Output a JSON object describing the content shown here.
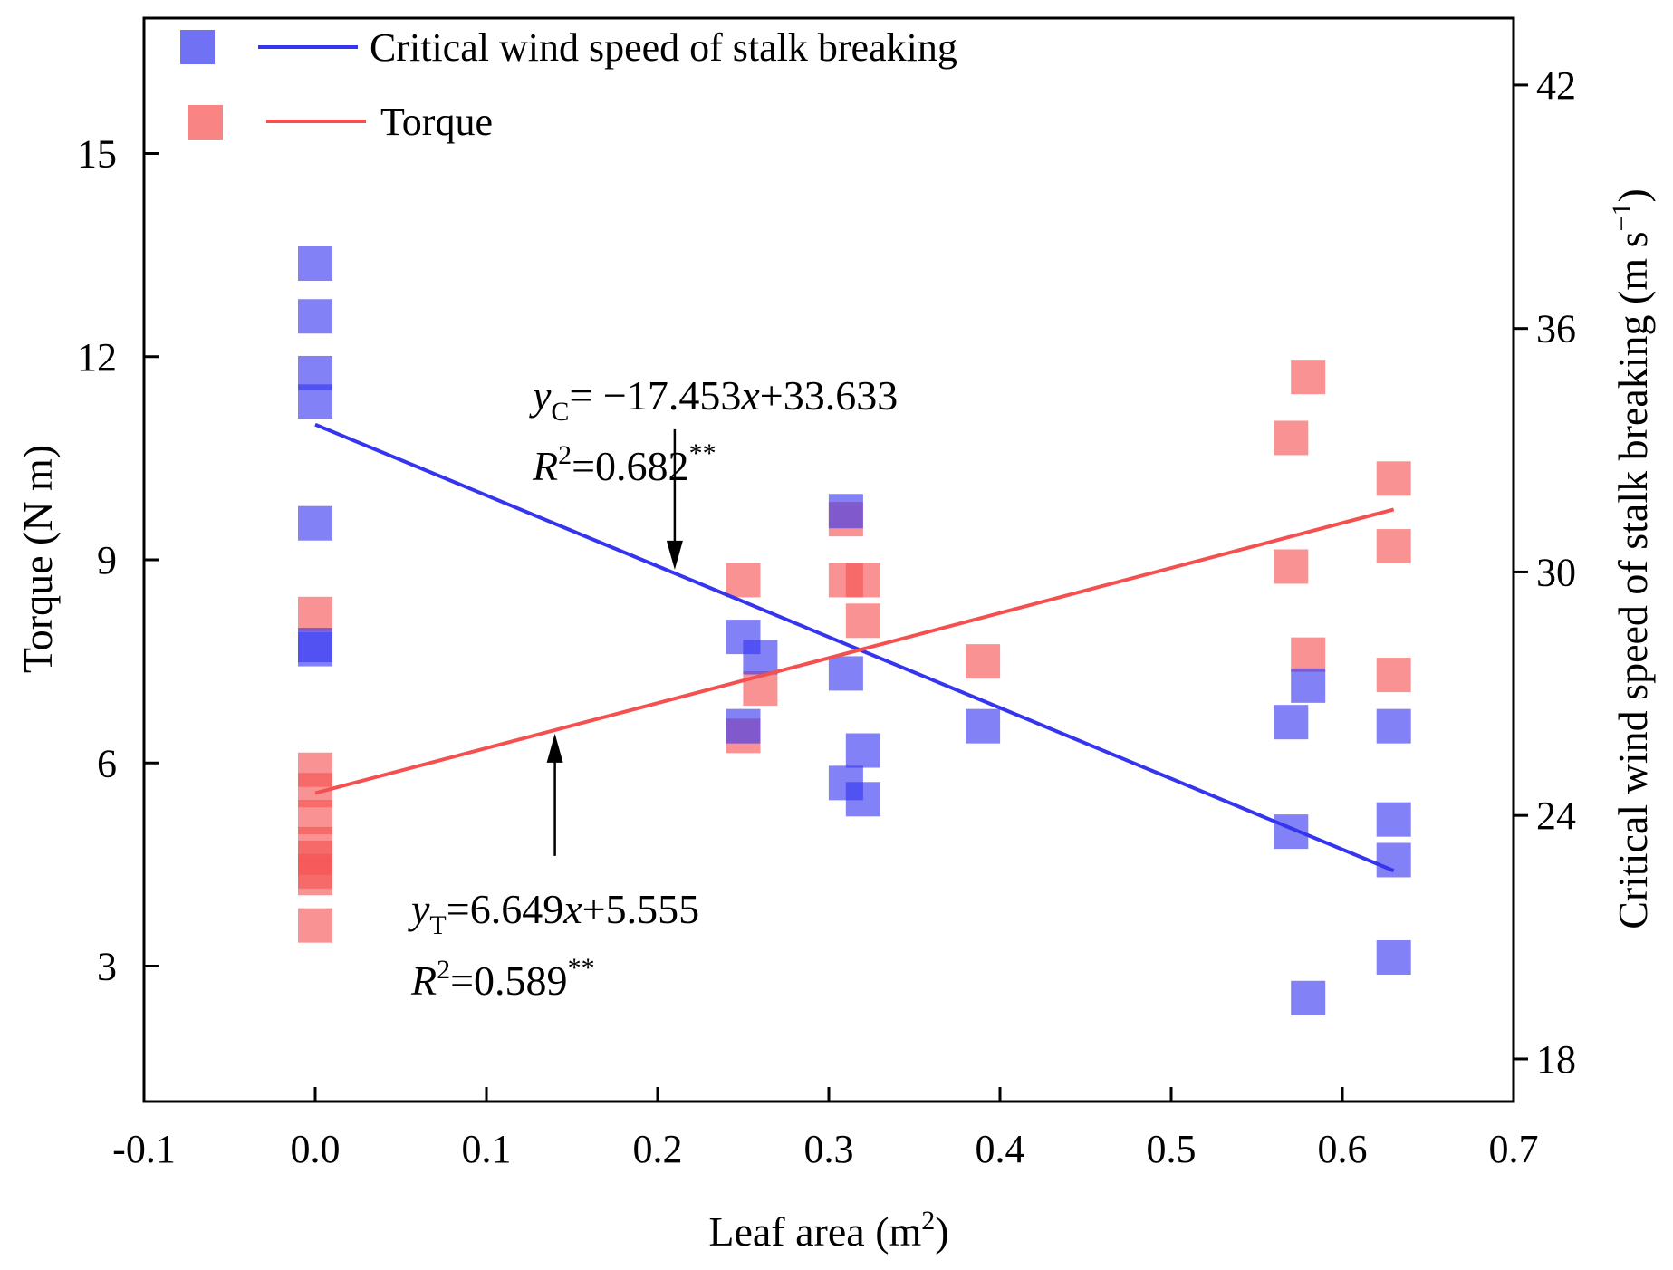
{
  "chart_data": {
    "type": "scatter",
    "xlabel": "Leaf area (m",
    "xlabel_sup": "2",
    "xlabel_end": ")",
    "ylabel": "Torque (N m)",
    "y2label": "Critical wind speed of stalk breaking (m s",
    "y2label_sup": "−1",
    "y2label_end": ")",
    "xlim": [
      -0.1,
      0.7
    ],
    "ylim": [
      1.0,
      17.0
    ],
    "y2lim": [
      16.95,
      43.65
    ],
    "xticks": [
      -0.1,
      0.0,
      0.1,
      0.2,
      0.3,
      0.4,
      0.5,
      0.6,
      0.7
    ],
    "xtick_labels": [
      "-0.1",
      "0.0",
      "0.1",
      "0.2",
      "0.3",
      "0.4",
      "0.5",
      "0.6",
      "0.7"
    ],
    "yticks": [
      3,
      6,
      9,
      12,
      15
    ],
    "ytick_labels": [
      "3",
      "6",
      "9",
      "12",
      "15"
    ],
    "y2ticks": [
      18,
      24,
      30,
      36,
      42
    ],
    "y2tick_labels": [
      "18",
      "24",
      "30",
      "36",
      "42"
    ],
    "legend": {
      "placement": "top-left",
      "entries": [
        {
          "label": "Critical wind speed of stalk breaking",
          "color": "#3535f0"
        },
        {
          "label": "Torque",
          "color": "#f55050"
        }
      ]
    },
    "series": [
      {
        "name": "Critical wind speed of stalk breaking",
        "axis": "right",
        "color": "#3535f0",
        "x": [
          0.0,
          0.0,
          0.0,
          0.0,
          0.0,
          0.0,
          0.0,
          0.25,
          0.25,
          0.26,
          0.31,
          0.31,
          0.31,
          0.32,
          0.32,
          0.39,
          0.57,
          0.57,
          0.58,
          0.58,
          0.63,
          0.63,
          0.63,
          0.63
        ],
        "y": [
          37.6,
          36.3,
          34.9,
          34.2,
          31.2,
          28.1,
          28.2,
          28.4,
          26.2,
          27.9,
          31.5,
          27.5,
          24.8,
          25.6,
          24.4,
          26.2,
          23.6,
          26.3,
          19.5,
          27.2,
          26.2,
          23.9,
          22.9,
          20.5
        ],
        "fit": {
          "slope": -17.453,
          "intercept": 33.633,
          "x_range": [
            0.0,
            0.63
          ]
        },
        "equation_main": "= −17.453",
        "equation_tail": "+33.633",
        "var_sub": "C",
        "r2_value": "=0.682",
        "r2_sig": "**"
      },
      {
        "name": "Torque",
        "axis": "left",
        "color": "#f55050",
        "x": [
          0.0,
          0.0,
          0.0,
          0.0,
          0.0,
          0.0,
          0.0,
          0.0,
          0.0,
          0.25,
          0.25,
          0.26,
          0.31,
          0.31,
          0.32,
          0.32,
          0.39,
          0.57,
          0.57,
          0.58,
          0.58,
          0.63,
          0.63,
          0.63
        ],
        "y": [
          8.2,
          5.9,
          5.6,
          5.2,
          4.8,
          4.6,
          4.4,
          4.3,
          3.6,
          8.7,
          6.4,
          7.1,
          9.6,
          8.7,
          8.7,
          8.1,
          7.5,
          10.8,
          8.9,
          11.7,
          7.6,
          10.2,
          9.2,
          7.3
        ],
        "fit": {
          "slope": 6.649,
          "intercept": 5.555,
          "x_range": [
            0.0,
            0.63
          ]
        },
        "equation_main": "=6.649",
        "equation_tail": "+5.555",
        "var_sub": "T",
        "r2_value": "=0.589",
        "r2_sig": "**"
      }
    ],
    "annotations": [
      {
        "series": 0,
        "arrow_to_x": 0.21,
        "text_near_x": 0.13,
        "direction": "down"
      },
      {
        "series": 1,
        "arrow_to_x": 0.14,
        "text_near_x": 0.06,
        "direction": "up"
      }
    ],
    "annotation_var": "y",
    "annotation_x_var": "x",
    "annotation_r_var": "R",
    "annotation_r_sup": "2"
  }
}
